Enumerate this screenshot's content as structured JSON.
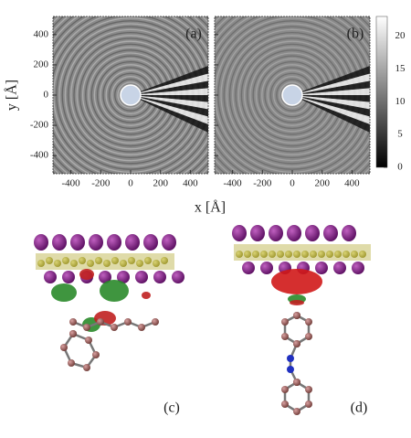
{
  "panels": [
    {
      "label": "(a)"
    },
    {
      "label": "(b)"
    }
  ],
  "x_axis": {
    "label": "x [Å]",
    "lim": [
      -520,
      520
    ],
    "ticks": [
      -400,
      -200,
      0,
      200,
      400
    ]
  },
  "y_axis": {
    "label": "y [Å]",
    "lim": [
      -520,
      520
    ],
    "ticks": [
      -400,
      -200,
      0,
      200,
      400
    ]
  },
  "colorbar": {
    "lim": [
      0,
      23
    ],
    "ticks": [
      0,
      5,
      10,
      15,
      20
    ]
  },
  "structures": [
    {
      "label": "(c)"
    },
    {
      "label": "(d)"
    }
  ]
}
